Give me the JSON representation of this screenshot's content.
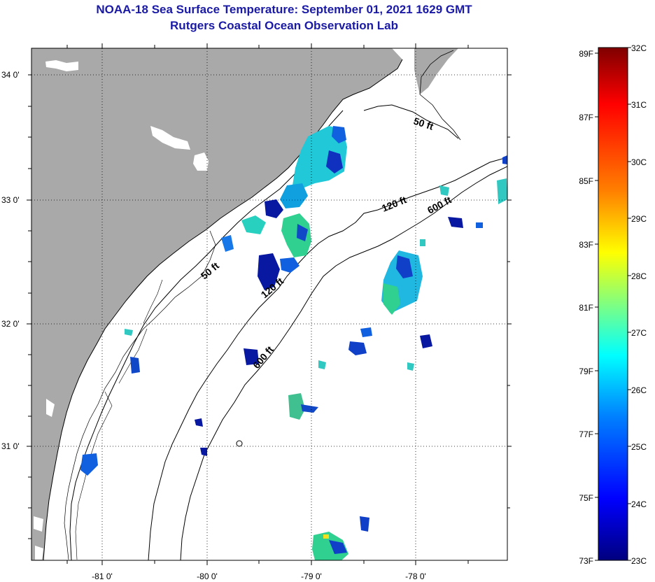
{
  "header": {
    "title": "NOAA-18 Sea Surface Temperature:  September 01, 2021 1629 GMT",
    "subtitle": "Rutgers Coastal Ocean Observation Lab"
  },
  "map": {
    "lon_ticks": [
      "-81 0'",
      "-80 0'",
      "-79 0'",
      "-78 0'"
    ],
    "lat_ticks": [
      "34 0'",
      "33 0'",
      "32 0'",
      "31 0'"
    ],
    "contours": [
      "50 ft",
      "120 ft",
      "600 ft",
      "50 ft",
      "120 ft",
      "600 ft"
    ],
    "colors": {
      "land": "#a9a9a9",
      "water": "#ffffff",
      "cloud": "#ffffff"
    }
  },
  "colorbar": {
    "celsius": [
      "32C",
      "31C",
      "30C",
      "29C",
      "28C",
      "27C",
      "26C",
      "25C",
      "24C",
      "23C"
    ],
    "fahrenheit": [
      "89F",
      "87F",
      "85F",
      "83F",
      "81F",
      "79F",
      "77F",
      "75F",
      "73F"
    ],
    "range_c": [
      23,
      32
    ],
    "stops": [
      "#7f0000",
      "#ff0000",
      "#ff8000",
      "#ffff00",
      "#80ff80",
      "#00ffff",
      "#0080ff",
      "#0000ff",
      "#00007f"
    ]
  }
}
